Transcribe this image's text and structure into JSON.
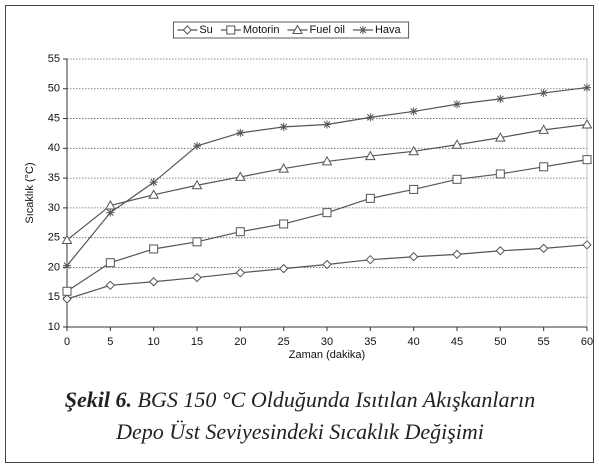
{
  "chart_data": {
    "type": "line",
    "xlabel": "Zaman (dakika)",
    "ylabel": "Sıcaklık (°C)",
    "x": [
      0,
      5,
      10,
      15,
      20,
      25,
      30,
      35,
      40,
      45,
      50,
      55,
      60
    ],
    "xlim": [
      0,
      60
    ],
    "xticks": [
      0,
      5,
      10,
      15,
      20,
      25,
      30,
      35,
      40,
      45,
      50,
      55,
      60
    ],
    "ylim": [
      10,
      55
    ],
    "yticks": [
      10,
      15,
      20,
      25,
      30,
      35,
      40,
      45,
      50,
      55
    ],
    "grid": true,
    "legend": "top",
    "series": [
      {
        "name": "Su",
        "color": "#555555",
        "marker": "diamond",
        "values": [
          14.7,
          17,
          17.6,
          18.3,
          19.1,
          19.8,
          20.5,
          21.3,
          21.8,
          22.2,
          22.8,
          23.2,
          23.8
        ]
      },
      {
        "name": "Motorin",
        "color": "#555555",
        "marker": "square",
        "values": [
          16,
          20.8,
          23.1,
          24.3,
          26,
          27.3,
          29.2,
          31.6,
          33.1,
          34.8,
          35.7,
          36.9,
          38.1
        ]
      },
      {
        "name": "Fuel oil",
        "color": "#555555",
        "marker": "triangle",
        "values": [
          24.6,
          30.4,
          32.2,
          33.8,
          35.2,
          36.6,
          37.8,
          38.7,
          39.5,
          40.6,
          41.8,
          43.1,
          44
        ]
      },
      {
        "name": "Hava",
        "color": "#555555",
        "marker": "asterisk",
        "values": [
          20.3,
          29.2,
          34.3,
          40.4,
          42.6,
          43.6,
          44,
          45.2,
          46.2,
          47.4,
          48.3,
          49.3,
          50.2
        ]
      }
    ]
  },
  "caption": {
    "label": "Şekil 6.",
    "lines": [
      "BGS 150 °C Olduğunda Isıtılan Akışkanların",
      "Depo Üst Seviyesindeki Sıcaklık Değişimi"
    ]
  }
}
